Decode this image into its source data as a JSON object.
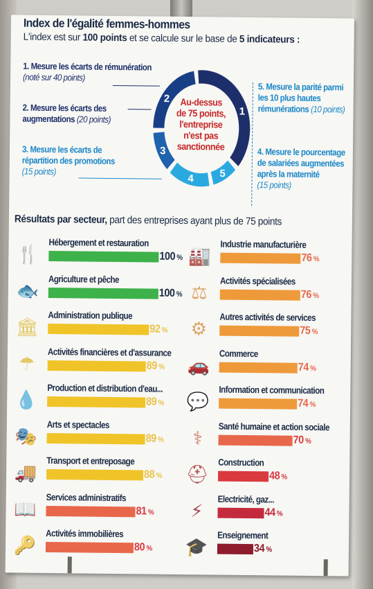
{
  "title": "Index de l'égalité femmes-hommes",
  "subtitle": {
    "part1": "L'index est sur ",
    "bold1": "100 points",
    "part2": " et se calcule sur le base de ",
    "bold2": "5 indicateurs :"
  },
  "indicators": [
    {
      "num": "1",
      "label": "1. Mesure les écarts de rémunération",
      "note": "(noté sur 40 points)"
    },
    {
      "num": "2",
      "label": "2. Mesure les écarts des",
      "label2": "augmentations",
      "note": "(20 points)"
    },
    {
      "num": "3",
      "label": "3. Mesure les écarts de",
      "label2": "répartition des promotions",
      "note": "(15 points)"
    },
    {
      "num": "4",
      "label": "4. Mesure le pourcentage",
      "label2": "de salariées augmentées",
      "label3": "après la maternité",
      "note": "(15 points)"
    },
    {
      "num": "5",
      "label": "5. Mesure la parité parmi",
      "label2": "les 10 plus hautes",
      "label3": "rémunérations",
      "note": "(10 points)"
    }
  ],
  "center_text": [
    "Au-dessus",
    "de 75 points,",
    "l'entreprise",
    "n'est pas",
    "sanctionnée"
  ],
  "section": {
    "bold": "Résultats par secteur,",
    "rest": " part des entreprises ayant plus de 75 points"
  },
  "colors": {
    "green": "#3db14a",
    "yellow": "#f0c428",
    "orange": "#ee9a3a",
    "coral": "#e8674a",
    "red": "#d93a3e",
    "crimson": "#c42a3e",
    "darkred": "#8e1c2c",
    "ring_dark": "#1d2f6a",
    "ring_light": "#2aa9e0"
  },
  "chart_data": {
    "type": "bar",
    "title": "Résultats par secteur, part des entreprises ayant plus de 75 points",
    "unit": "%",
    "categories": [
      "Hébergement et restauration",
      "Agriculture et pêche",
      "Administration publique",
      "Activités financières et d'assurance",
      "Production et distribution d'eau...",
      "Arts et spectacles",
      "Transport et entreposage",
      "Services administratifs",
      "Activités immobilières",
      "Industrie manufacturière",
      "Activités spécialisées",
      "Autres activités de services",
      "Commerce",
      "Information et communication",
      "Santé humaine et action sociale",
      "Construction",
      "Electricité, gaz...",
      "Enseignement"
    ],
    "values": [
      100,
      100,
      92,
      89,
      89,
      89,
      88,
      81,
      80,
      76,
      76,
      75,
      74,
      74,
      70,
      48,
      44,
      34
    ],
    "icons": [
      "food-tree-icon",
      "fish-wheat-icon",
      "building-icon",
      "umbrella-coins-icon",
      "water-drop-icon",
      "theater-masks-icon",
      "truck-icon",
      "book-icon",
      "house-key-icon",
      "factory-icon",
      "scales-icon",
      "gear-hand-icon",
      "shopping-car-icon",
      "chat-bubble-icon",
      "doctor-icon",
      "crane-helmet-icon",
      "bolt-flame-icon",
      "graduation-house-icon"
    ],
    "bar_colors": [
      "#3db14a",
      "#3db14a",
      "#f0c428",
      "#f0c428",
      "#f0c428",
      "#f0c428",
      "#f0c428",
      "#e8674a",
      "#e8674a",
      "#ee9a3a",
      "#ee9a3a",
      "#ee9a3a",
      "#ee9a3a",
      "#ee9a3a",
      "#e8674a",
      "#d93a3e",
      "#c42a3e",
      "#8e1c2c"
    ],
    "value_colors": [
      "#1b2a44",
      "#1b2a44",
      "#e9c24a",
      "#e9c24a",
      "#e9c24a",
      "#e9c24a",
      "#e9c24a",
      "#d93a3e",
      "#d93a3e",
      "#e8674a",
      "#e8674a",
      "#e8674a",
      "#e8674a",
      "#e8674a",
      "#d93a3e",
      "#d93a3e",
      "#c42a3e",
      "#8e1c2c"
    ],
    "xlim": [
      0,
      100
    ]
  }
}
